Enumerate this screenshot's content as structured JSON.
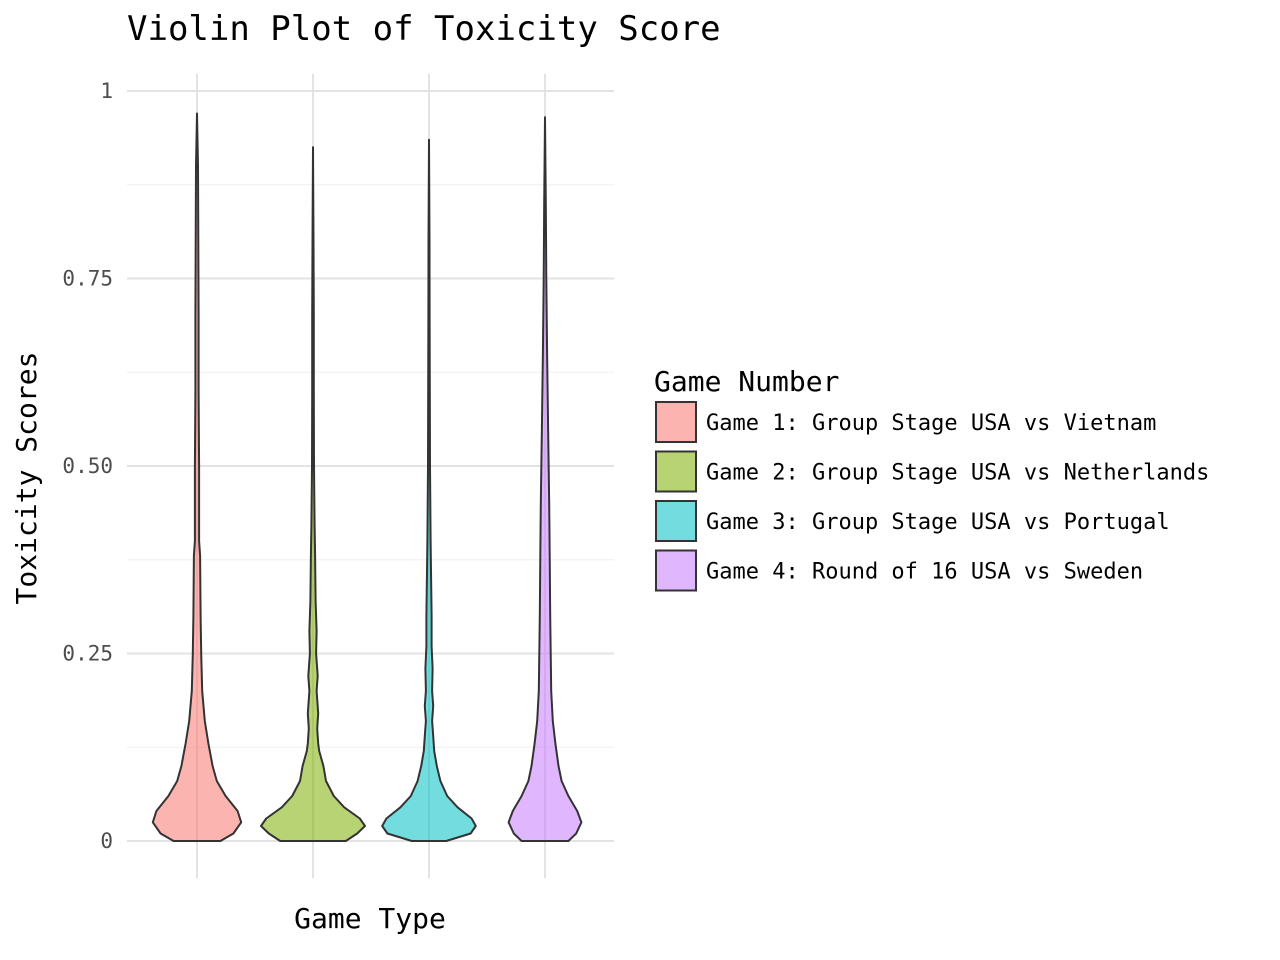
{
  "chart_data": {
    "type": "violin",
    "title": "Violin Plot of Toxicity Score",
    "xlabel": "Game Type",
    "ylabel": "Toxicity Scores",
    "ylim": [
      0,
      1
    ],
    "yticks": [
      {
        "value": 0,
        "label": "0"
      },
      {
        "value": 0.25,
        "label": "0.25"
      },
      {
        "value": 0.5,
        "label": "0.50"
      },
      {
        "value": 0.75,
        "label": "0.75"
      },
      {
        "value": 1,
        "label": "1"
      }
    ],
    "grid": true,
    "legend": {
      "title": "Game Number",
      "placement": "right"
    },
    "series": [
      {
        "name": "Game 1: Group Stage USA vs Vietnam",
        "color": "#F8766D",
        "max": 0.97,
        "density": [
          [
            0,
            0.45
          ],
          [
            0.01,
            0.7
          ],
          [
            0.025,
            0.85
          ],
          [
            0.04,
            0.78
          ],
          [
            0.06,
            0.55
          ],
          [
            0.08,
            0.38
          ],
          [
            0.1,
            0.3
          ],
          [
            0.13,
            0.22
          ],
          [
            0.16,
            0.15
          ],
          [
            0.2,
            0.1
          ],
          [
            0.25,
            0.08
          ],
          [
            0.3,
            0.07
          ],
          [
            0.38,
            0.06
          ],
          [
            0.4,
            0.04
          ],
          [
            0.5,
            0.04
          ],
          [
            0.6,
            0.03
          ],
          [
            0.7,
            0.03
          ],
          [
            0.8,
            0.025
          ],
          [
            0.9,
            0.02
          ],
          [
            0.97,
            0
          ]
        ]
      },
      {
        "name": "Game 2: Group Stage USA vs Netherlands",
        "color": "#7CAE00",
        "max": 0.925,
        "density": [
          [
            0,
            0.63
          ],
          [
            0.01,
            0.85
          ],
          [
            0.02,
            1.0
          ],
          [
            0.03,
            0.9
          ],
          [
            0.045,
            0.6
          ],
          [
            0.06,
            0.4
          ],
          [
            0.08,
            0.25
          ],
          [
            0.1,
            0.2
          ],
          [
            0.12,
            0.12
          ],
          [
            0.13,
            0.1
          ],
          [
            0.15,
            0.08
          ],
          [
            0.17,
            0.1
          ],
          [
            0.2,
            0.07
          ],
          [
            0.22,
            0.09
          ],
          [
            0.25,
            0.06
          ],
          [
            0.28,
            0.07
          ],
          [
            0.32,
            0.05
          ],
          [
            0.38,
            0.04
          ],
          [
            0.42,
            0.03
          ],
          [
            0.5,
            0.02
          ],
          [
            0.6,
            0.015
          ],
          [
            0.7,
            0.015
          ],
          [
            0.8,
            0.01
          ],
          [
            0.925,
            0
          ]
        ]
      },
      {
        "name": "Game 3: Group Stage USA vs Portugal",
        "color": "#00BFC4",
        "max": 0.935,
        "density": [
          [
            0,
            0.33
          ],
          [
            0.01,
            0.8
          ],
          [
            0.02,
            0.9
          ],
          [
            0.03,
            0.82
          ],
          [
            0.045,
            0.55
          ],
          [
            0.06,
            0.35
          ],
          [
            0.08,
            0.22
          ],
          [
            0.1,
            0.15
          ],
          [
            0.12,
            0.1
          ],
          [
            0.14,
            0.08
          ],
          [
            0.16,
            0.06
          ],
          [
            0.18,
            0.08
          ],
          [
            0.2,
            0.06
          ],
          [
            0.23,
            0.07
          ],
          [
            0.26,
            0.05
          ],
          [
            0.3,
            0.05
          ],
          [
            0.35,
            0.04
          ],
          [
            0.4,
            0.03
          ],
          [
            0.5,
            0.02
          ],
          [
            0.6,
            0.015
          ],
          [
            0.7,
            0.012
          ],
          [
            0.8,
            0.01
          ],
          [
            0.935,
            0
          ]
        ]
      },
      {
        "name": "Game 4: Round of 16 USA vs Sweden",
        "color": "#C77CFF",
        "max": 0.965,
        "density": [
          [
            0,
            0.45
          ],
          [
            0.01,
            0.6
          ],
          [
            0.025,
            0.7
          ],
          [
            0.04,
            0.62
          ],
          [
            0.06,
            0.45
          ],
          [
            0.08,
            0.32
          ],
          [
            0.1,
            0.26
          ],
          [
            0.13,
            0.2
          ],
          [
            0.16,
            0.15
          ],
          [
            0.2,
            0.12
          ],
          [
            0.25,
            0.11
          ],
          [
            0.3,
            0.1
          ],
          [
            0.38,
            0.09
          ],
          [
            0.45,
            0.08
          ],
          [
            0.55,
            0.06
          ],
          [
            0.65,
            0.04
          ],
          [
            0.75,
            0.025
          ],
          [
            0.85,
            0.015
          ],
          [
            0.965,
            0
          ]
        ]
      }
    ]
  }
}
